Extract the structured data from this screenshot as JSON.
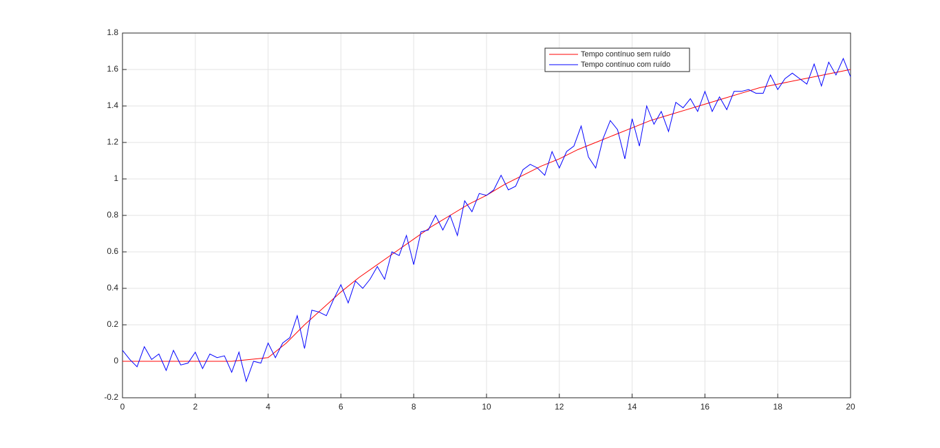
{
  "chart_data": {
    "type": "line",
    "xlim": [
      0,
      20
    ],
    "xticks": [
      0,
      2,
      4,
      6,
      8,
      10,
      12,
      14,
      16,
      18,
      20
    ],
    "ylim": [
      -0.2,
      1.8
    ],
    "yticks": [
      -0.2,
      0,
      0.2,
      0.4,
      0.6,
      0.8,
      1,
      1.2,
      1.4,
      1.6,
      1.8
    ],
    "grid": true,
    "legend": "northeast",
    "series": [
      {
        "name": "Tempo contínuo sem ruído",
        "color": "#ff0000",
        "x": [
          0,
          0.5,
          1,
          1.5,
          2,
          2.5,
          3,
          3.5,
          4,
          4.5,
          5,
          5.5,
          6,
          6.5,
          7,
          7.5,
          8,
          8.5,
          9,
          9.5,
          10,
          10.5,
          11,
          11.5,
          12,
          12.5,
          13,
          13.5,
          14,
          14.5,
          15,
          15.5,
          16,
          16.5,
          17,
          17.5,
          18,
          18.5,
          19,
          19.5,
          20
        ],
        "values": [
          0,
          0,
          0,
          0,
          0,
          0,
          0,
          0.01,
          0.02,
          0.1,
          0.2,
          0.29,
          0.38,
          0.46,
          0.53,
          0.6,
          0.67,
          0.74,
          0.8,
          0.86,
          0.91,
          0.97,
          1.02,
          1.07,
          1.11,
          1.16,
          1.2,
          1.24,
          1.28,
          1.32,
          1.35,
          1.38,
          1.41,
          1.44,
          1.47,
          1.5,
          1.52,
          1.54,
          1.56,
          1.58,
          1.6
        ]
      },
      {
        "name": "Tempo contínuo com ruído",
        "color": "#0000ff",
        "x": [
          0,
          0.2,
          0.4,
          0.6,
          0.8,
          1,
          1.2,
          1.4,
          1.6,
          1.8,
          2,
          2.2,
          2.4,
          2.6,
          2.8,
          3,
          3.2,
          3.4,
          3.6,
          3.8,
          4,
          4.2,
          4.4,
          4.6,
          4.8,
          5,
          5.2,
          5.4,
          5.6,
          5.8,
          6,
          6.2,
          6.4,
          6.6,
          6.8,
          7,
          7.2,
          7.4,
          7.6,
          7.8,
          8,
          8.2,
          8.4,
          8.6,
          8.8,
          9,
          9.2,
          9.4,
          9.6,
          9.8,
          10,
          10.2,
          10.4,
          10.6,
          10.8,
          11,
          11.2,
          11.4,
          11.6,
          11.8,
          12,
          12.2,
          12.4,
          12.6,
          12.8,
          13,
          13.2,
          13.4,
          13.6,
          13.8,
          14,
          14.2,
          14.4,
          14.6,
          14.8,
          15,
          15.2,
          15.4,
          15.6,
          15.8,
          16,
          16.2,
          16.4,
          16.6,
          16.8,
          17,
          17.2,
          17.4,
          17.6,
          17.8,
          18,
          18.2,
          18.4,
          18.6,
          18.8,
          19,
          19.2,
          19.4,
          19.6,
          19.8,
          20
        ],
        "values": [
          0.06,
          0.01,
          -0.03,
          0.08,
          0.01,
          0.04,
          -0.05,
          0.06,
          -0.02,
          -0.01,
          0.05,
          -0.04,
          0.04,
          0.02,
          0.03,
          -0.06,
          0.05,
          -0.11,
          0,
          -0.01,
          0.1,
          0.02,
          0.1,
          0.13,
          0.25,
          0.07,
          0.28,
          0.27,
          0.25,
          0.34,
          0.42,
          0.32,
          0.44,
          0.4,
          0.45,
          0.52,
          0.45,
          0.6,
          0.58,
          0.69,
          0.53,
          0.71,
          0.72,
          0.8,
          0.72,
          0.8,
          0.69,
          0.88,
          0.82,
          0.92,
          0.91,
          0.94,
          1.02,
          0.94,
          0.96,
          1.05,
          1.08,
          1.06,
          1.02,
          1.15,
          1.06,
          1.15,
          1.18,
          1.29,
          1.12,
          1.06,
          1.22,
          1.32,
          1.27,
          1.11,
          1.33,
          1.18,
          1.4,
          1.3,
          1.37,
          1.26,
          1.42,
          1.39,
          1.44,
          1.37,
          1.48,
          1.37,
          1.45,
          1.38,
          1.48,
          1.48,
          1.49,
          1.47,
          1.47,
          1.57,
          1.49,
          1.55,
          1.58,
          1.55,
          1.52,
          1.63,
          1.51,
          1.64,
          1.57,
          1.66,
          1.56
        ]
      }
    ]
  }
}
